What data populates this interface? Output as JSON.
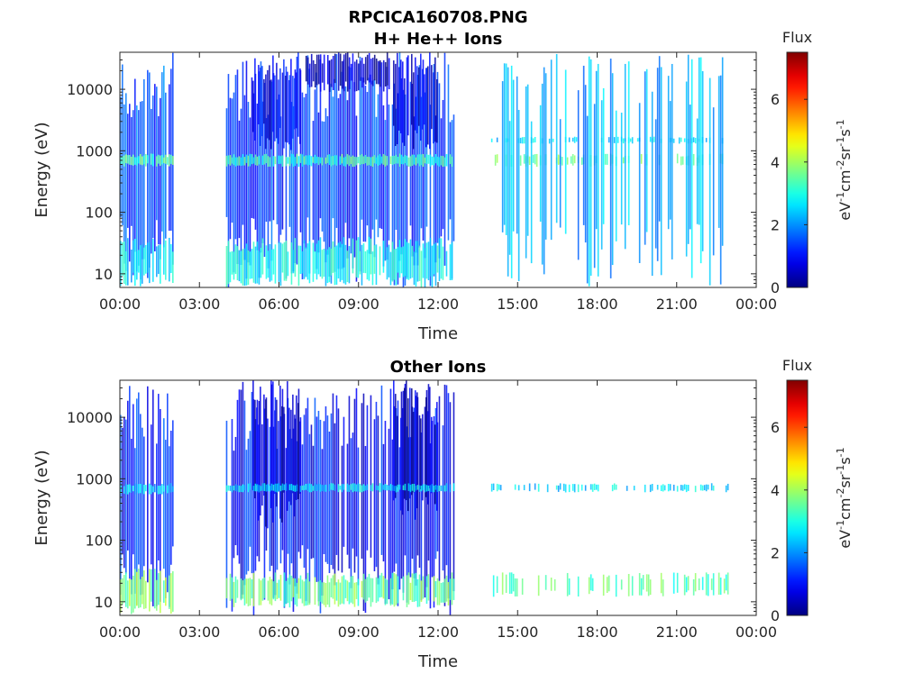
{
  "figure": {
    "title_line1": "RPCICA160708.PNG"
  },
  "chart_data": [
    {
      "type": "heatmap",
      "title": "H+ He++ Ions",
      "xlabel": "Time",
      "ylabel": "Energy (eV)",
      "x_ticks": [
        "00:00",
        "03:00",
        "06:00",
        "09:00",
        "12:00",
        "15:00",
        "18:00",
        "21:00",
        "00:00"
      ],
      "x_range_hours": [
        0,
        24
      ],
      "y_scale": "log",
      "y_ticks": [
        "10",
        "100",
        "1000",
        "10000"
      ],
      "y_range_eV": [
        6,
        40000
      ],
      "colorbar": {
        "title": "Flux",
        "label": "eV-1cm-2sr-1s-1",
        "ticks": [
          "0",
          "2",
          "4",
          "6"
        ],
        "range": [
          0,
          7.5
        ],
        "colormap": "jet"
      },
      "data_gaps_hours": [
        [
          2.1,
          4.0
        ],
        [
          12.7,
          14.0
        ],
        [
          23.0,
          24.0
        ]
      ],
      "regions": [
        {
          "t": [
            0.0,
            2.1
          ],
          "e": [
            6,
            40000
          ],
          "flux": 1.5
        },
        {
          "t": [
            4.0,
            12.7
          ],
          "e": [
            6,
            40000
          ],
          "flux": 1.3
        },
        {
          "t": [
            5.0,
            6.9
          ],
          "e": [
            1000,
            40000
          ],
          "flux": 0.8
        },
        {
          "t": [
            10.3,
            12.0
          ],
          "e": [
            1000,
            40000
          ],
          "flux": 0.8
        },
        {
          "t": [
            7.0,
            10.2
          ],
          "e": [
            9000,
            40000
          ],
          "flux": 0.4
        },
        {
          "t": [
            0.0,
            2.1
          ],
          "e": [
            550,
            900
          ],
          "flux": 3.3
        },
        {
          "t": [
            4.0,
            12.7
          ],
          "e": [
            550,
            900
          ],
          "flux": 3.2
        },
        {
          "t": [
            14.0,
            23.0
          ],
          "e": [
            550,
            900
          ],
          "flux": 3.6
        },
        {
          "t": [
            14.0,
            23.0
          ],
          "e": [
            1300,
            1700
          ],
          "flux": 2.6
        },
        {
          "t": [
            0.0,
            2.1
          ],
          "e": [
            6,
            40
          ],
          "flux": 2.6
        },
        {
          "t": [
            4.0,
            12.7
          ],
          "e": [
            6,
            40
          ],
          "flux": 2.8
        },
        {
          "t": [
            14.0,
            23.0
          ],
          "e": [
            6,
            40000
          ],
          "flux": 2.2
        }
      ]
    },
    {
      "type": "heatmap",
      "title": "Other Ions",
      "xlabel": "Time",
      "ylabel": "Energy (eV)",
      "x_ticks": [
        "00:00",
        "03:00",
        "06:00",
        "09:00",
        "12:00",
        "15:00",
        "18:00",
        "21:00",
        "00:00"
      ],
      "x_range_hours": [
        0,
        24
      ],
      "y_scale": "log",
      "y_ticks": [
        "10",
        "100",
        "1000",
        "10000"
      ],
      "y_range_eV": [
        6,
        40000
      ],
      "colorbar": {
        "title": "Flux",
        "label": "eV-1cm-2sr-1s-1",
        "ticks": [
          "0",
          "2",
          "4",
          "6"
        ],
        "range": [
          0,
          7.5
        ],
        "colormap": "jet"
      },
      "data_gaps_hours": [
        [
          2.1,
          4.0
        ],
        [
          12.7,
          14.0
        ],
        [
          23.0,
          24.0
        ]
      ],
      "regions": [
        {
          "t": [
            0.0,
            2.1
          ],
          "e": [
            6,
            40000
          ],
          "flux": 1.2
        },
        {
          "t": [
            4.0,
            12.7
          ],
          "e": [
            6,
            40000
          ],
          "flux": 1.0
        },
        {
          "t": [
            5.0,
            6.9
          ],
          "e": [
            150,
            40000
          ],
          "flux": 0.5
        },
        {
          "t": [
            10.3,
            12.0
          ],
          "e": [
            150,
            40000
          ],
          "flux": 0.5
        },
        {
          "t": [
            0.0,
            2.1
          ],
          "e": [
            550,
            850
          ],
          "flux": 2.4
        },
        {
          "t": [
            4.0,
            12.7
          ],
          "e": [
            600,
            850
          ],
          "flux": 2.6
        },
        {
          "t": [
            14.0,
            23.0
          ],
          "e": [
            600,
            850
          ],
          "flux": 2.6
        },
        {
          "t": [
            0.0,
            2.1
          ],
          "e": [
            6,
            35
          ],
          "flux": 3.8
        },
        {
          "t": [
            4.0,
            12.7
          ],
          "e": [
            8,
            30
          ],
          "flux": 3.6
        },
        {
          "t": [
            14.0,
            23.0
          ],
          "e": [
            12,
            30
          ],
          "flux": 3.4
        }
      ]
    }
  ]
}
